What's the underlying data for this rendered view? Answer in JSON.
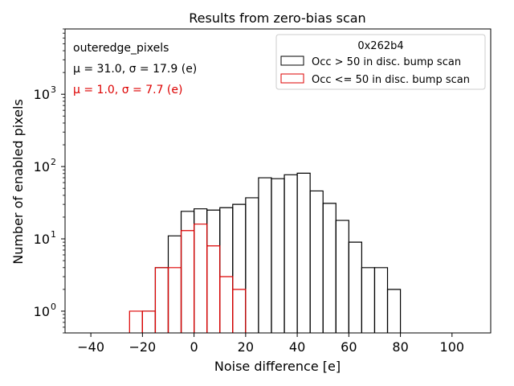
{
  "chart_data": {
    "type": "histogram",
    "title": "Results from zero-bias scan",
    "xlabel": "Noise difference [e]",
    "ylabel": "Number of enabled pixels",
    "xlim": [
      -50,
      115
    ],
    "ylim": [
      0.5,
      8000
    ],
    "yscale": "log",
    "x_ticks": [
      -40,
      -20,
      0,
      20,
      40,
      60,
      80,
      100
    ],
    "x_tick_labels": [
      "−40",
      "−20",
      "0",
      "20",
      "40",
      "60",
      "80",
      "100"
    ],
    "y_ticks": [
      {
        "value": 1,
        "base": "10",
        "exp": "0"
      },
      {
        "value": 10,
        "base": "10",
        "exp": "1"
      },
      {
        "value": 100,
        "base": "10",
        "exp": "2"
      },
      {
        "value": 1000,
        "base": "10",
        "exp": "3"
      }
    ],
    "annotations": [
      {
        "text": "outeredge_pixels",
        "color": "#000000"
      },
      {
        "text": "μ = 31.0, σ = 17.9 (e)",
        "color": "#000000"
      },
      {
        "text": "μ = 1.0, σ = 7.7 (e)",
        "color": "#dd0000"
      }
    ],
    "legend": {
      "title": "0x262b4",
      "location": "top-right"
    },
    "series": [
      {
        "name": "Occ > 50 in disc. bump scan",
        "color": "#000000",
        "bins": [
          {
            "x0": -20,
            "x1": -15,
            "count": 1
          },
          {
            "x0": -15,
            "x1": -10,
            "count": 4
          },
          {
            "x0": -10,
            "x1": -5,
            "count": 11
          },
          {
            "x0": -5,
            "x1": 0,
            "count": 24
          },
          {
            "x0": 0,
            "x1": 5,
            "count": 26
          },
          {
            "x0": 5,
            "x1": 10,
            "count": 25
          },
          {
            "x0": 10,
            "x1": 15,
            "count": 27
          },
          {
            "x0": 15,
            "x1": 20,
            "count": 30
          },
          {
            "x0": 20,
            "x1": 25,
            "count": 37
          },
          {
            "x0": 25,
            "x1": 30,
            "count": 70
          },
          {
            "x0": 30,
            "x1": 35,
            "count": 68
          },
          {
            "x0": 35,
            "x1": 40,
            "count": 77
          },
          {
            "x0": 40,
            "x1": 45,
            "count": 81
          },
          {
            "x0": 45,
            "x1": 50,
            "count": 46
          },
          {
            "x0": 50,
            "x1": 55,
            "count": 31
          },
          {
            "x0": 55,
            "x1": 60,
            "count": 18
          },
          {
            "x0": 60,
            "x1": 65,
            "count": 9
          },
          {
            "x0": 65,
            "x1": 70,
            "count": 4
          },
          {
            "x0": 70,
            "x1": 75,
            "count": 4
          },
          {
            "x0": 75,
            "x1": 80,
            "count": 2
          }
        ]
      },
      {
        "name": "Occ <= 50 in disc. bump scan",
        "color": "#dd0000",
        "bins": [
          {
            "x0": -25,
            "x1": -20,
            "count": 1
          },
          {
            "x0": -20,
            "x1": -15,
            "count": 1
          },
          {
            "x0": -15,
            "x1": -10,
            "count": 4
          },
          {
            "x0": -10,
            "x1": -5,
            "count": 4
          },
          {
            "x0": -5,
            "x1": 0,
            "count": 13
          },
          {
            "x0": 0,
            "x1": 5,
            "count": 16
          },
          {
            "x0": 5,
            "x1": 10,
            "count": 8
          },
          {
            "x0": 10,
            "x1": 15,
            "count": 3
          },
          {
            "x0": 15,
            "x1": 20,
            "count": 2
          }
        ]
      }
    ]
  }
}
